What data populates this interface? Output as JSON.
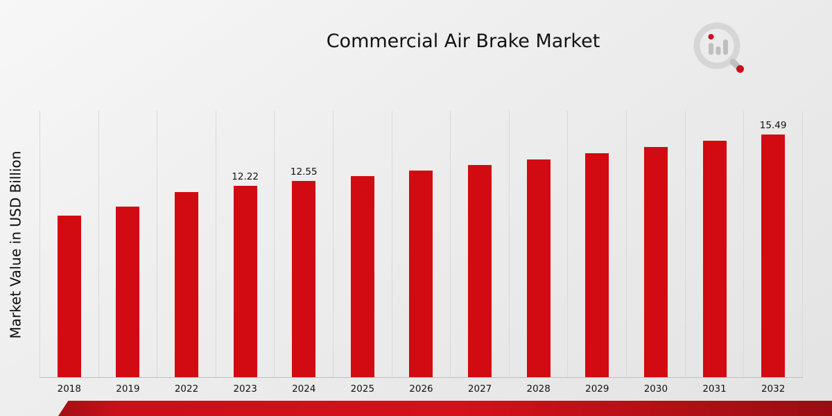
{
  "title": "Commercial Air Brake Market",
  "y_axis": {
    "label": "Market Value in USD Billion"
  },
  "chart_data": {
    "type": "bar",
    "title": "Commercial Air Brake Market",
    "xlabel": "",
    "ylabel": "Market Value in USD Billion",
    "categories": [
      "2018",
      "2019",
      "2022",
      "2023",
      "2024",
      "2025",
      "2026",
      "2027",
      "2028",
      "2029",
      "2030",
      "2031",
      "2032"
    ],
    "values": [
      10.3,
      10.9,
      11.8,
      12.22,
      12.55,
      12.85,
      13.2,
      13.55,
      13.9,
      14.3,
      14.7,
      15.1,
      15.49
    ],
    "bar_labels": [
      "",
      "",
      "",
      "12.22",
      "12.55",
      "",
      "",
      "",
      "",
      "",
      "",
      "",
      "15.49"
    ],
    "bar_color": "#d20a11",
    "ylim": [
      0,
      17
    ],
    "grid": "vertical-gridlines-between-categories",
    "legend": "none"
  },
  "colors": {
    "bar": "#d20a11",
    "footer_band": "#c90f19",
    "gridline": "#d9d9d9",
    "background_light": "#f7f7f7",
    "background_dark": "#e3e3e3"
  }
}
